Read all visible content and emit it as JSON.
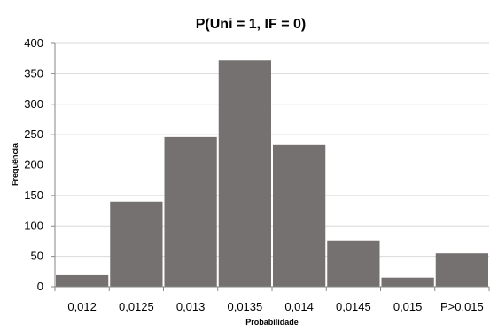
{
  "chart_data": {
    "type": "bar",
    "title": "P(Uni = 1, IF = 0)",
    "xlabel": "Probabilidade",
    "ylabel": "Frequência",
    "categories": [
      "0,012",
      "0,0125",
      "0,013",
      "0,0135",
      "0,014",
      "0,0145",
      "0,015",
      "P>0,015"
    ],
    "values": [
      19,
      140,
      246,
      372,
      233,
      76,
      15,
      55
    ],
    "ylim": [
      0,
      400
    ],
    "yticks": [
      0,
      50,
      100,
      150,
      200,
      250,
      300,
      350,
      400
    ],
    "ytick_labels": [
      "0",
      "50",
      "100",
      "150",
      "200",
      "250",
      "300",
      "350",
      "400"
    ],
    "grid": true,
    "bar_color": "#767171",
    "gridline_color": "#d9d9d9"
  }
}
